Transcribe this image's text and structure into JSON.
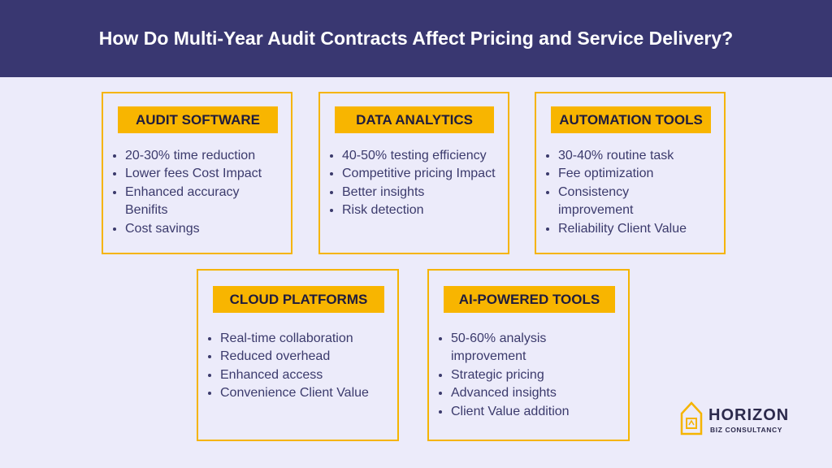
{
  "header": {
    "title": "How Do Multi-Year Audit Contracts Affect Pricing and Service Delivery?"
  },
  "cards": [
    {
      "title": "AUDIT SOFTWARE",
      "items": [
        "20-30% time reduction",
        "Lower fees Cost Impact",
        "Enhanced accuracy Benifits",
        "Cost savings"
      ]
    },
    {
      "title": "DATA ANALYTICS",
      "items": [
        "40-50% testing efficiency",
        "Competitive pricing Impact",
        "Better insights",
        "Risk detection"
      ]
    },
    {
      "title": "AUTOMATION TOOLS",
      "items": [
        "30-40% routine task",
        "Fee optimization",
        "Consistency improvement",
        "Reliability Client Value"
      ]
    },
    {
      "title": "CLOUD PLATFORMS",
      "items": [
        "Real-time collaboration",
        "Reduced overhead",
        "Enhanced access",
        "Convenience Client Value"
      ]
    },
    {
      "title": "AI-POWERED TOOLS",
      "items": [
        "50-60% analysis improvement",
        "Strategic pricing",
        "Advanced insights",
        " Client Value addition"
      ]
    }
  ],
  "logo": {
    "name": "HORIZON",
    "tagline": "BIZ CONSULTANCY"
  }
}
